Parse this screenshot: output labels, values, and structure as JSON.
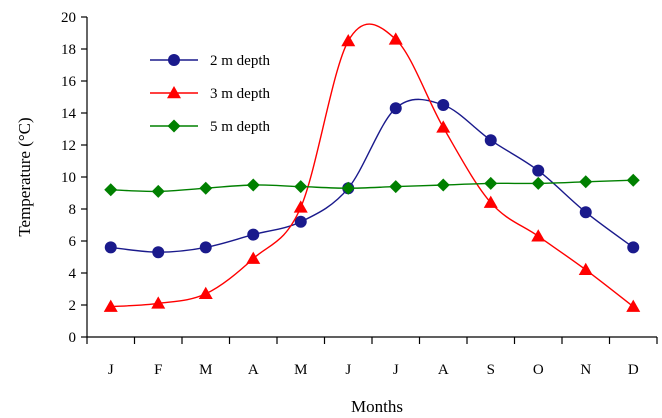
{
  "chart_data": {
    "type": "line",
    "xlabel": "Months",
    "ylabel": "Temperature (°C)",
    "categories": [
      "J",
      "F",
      "M",
      "A",
      "M",
      "J",
      "J",
      "A",
      "S",
      "O",
      "N",
      "D"
    ],
    "ylim": [
      0,
      20
    ],
    "yticks": [
      0,
      2,
      4,
      6,
      8,
      10,
      12,
      14,
      16,
      18,
      20
    ],
    "grid": false,
    "legend_position": "top-left",
    "series": [
      {
        "name": "2 m depth",
        "color": "#1a1a8c",
        "marker": "circle",
        "values": [
          5.6,
          5.3,
          5.6,
          6.4,
          7.2,
          9.3,
          14.3,
          14.5,
          12.3,
          10.4,
          7.8,
          5.6
        ]
      },
      {
        "name": "3 m depth",
        "color": "#ff0000",
        "marker": "triangle",
        "values": [
          1.9,
          2.1,
          2.7,
          4.9,
          8.1,
          18.5,
          18.6,
          13.1,
          8.4,
          6.3,
          4.2,
          1.9
        ]
      },
      {
        "name": "5 m depth",
        "color": "#008000",
        "marker": "diamond",
        "values": [
          9.2,
          9.1,
          9.3,
          9.5,
          9.4,
          9.3,
          9.4,
          9.5,
          9.6,
          9.6,
          9.7,
          9.8
        ]
      }
    ]
  }
}
